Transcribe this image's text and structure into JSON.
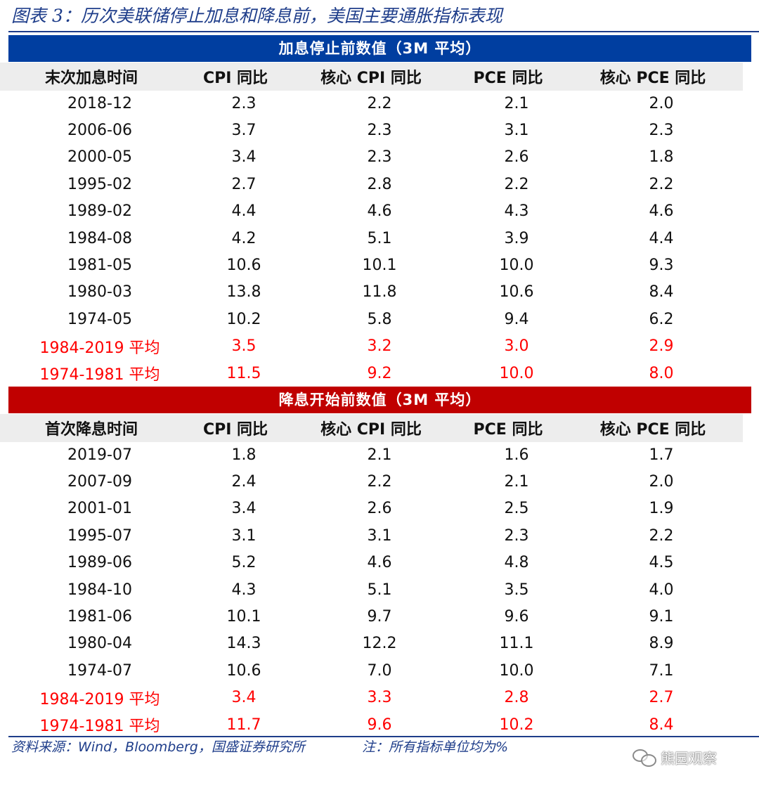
{
  "title": "图表 3：历次美联储停止加息和降息前，美国主要通胀指标表现",
  "section1": {
    "band": "加息停止前数值（3M 平均）",
    "headers": [
      "末次加息时间",
      "CPI 同比",
      "核心 CPI 同比",
      "PCE 同比",
      "核心 PCE 同比"
    ],
    "rows": [
      [
        "2018-12",
        "2.3",
        "2.2",
        "2.1",
        "2.0"
      ],
      [
        "2006-06",
        "3.7",
        "2.3",
        "3.1",
        "2.3"
      ],
      [
        "2000-05",
        "3.4",
        "2.3",
        "2.6",
        "1.8"
      ],
      [
        "1995-02",
        "2.7",
        "2.8",
        "2.2",
        "2.2"
      ],
      [
        "1989-02",
        "4.4",
        "4.6",
        "4.3",
        "4.6"
      ],
      [
        "1984-08",
        "4.2",
        "5.1",
        "3.9",
        "4.4"
      ],
      [
        "1981-05",
        "10.6",
        "10.1",
        "10.0",
        "9.3"
      ],
      [
        "1980-03",
        "13.8",
        "11.8",
        "10.6",
        "8.4"
      ],
      [
        "1974-05",
        "10.2",
        "5.8",
        "9.4",
        "6.2"
      ]
    ],
    "averages": [
      [
        "1984-2019 平均",
        "3.5",
        "3.2",
        "3.0",
        "2.9"
      ],
      [
        "1974-1981 平均",
        "11.5",
        "9.2",
        "10.0",
        "8.0"
      ]
    ]
  },
  "section2": {
    "band": "降息开始前数值（3M 平均）",
    "headers": [
      "首次降息时间",
      "CPI 同比",
      "核心 CPI 同比",
      "PCE 同比",
      "核心 PCE 同比"
    ],
    "rows": [
      [
        "2019-07",
        "1.8",
        "2.1",
        "1.6",
        "1.7"
      ],
      [
        "2007-09",
        "2.4",
        "2.2",
        "2.1",
        "2.0"
      ],
      [
        "2001-01",
        "3.4",
        "2.6",
        "2.5",
        "1.9"
      ],
      [
        "1995-07",
        "3.1",
        "3.1",
        "2.3",
        "2.2"
      ],
      [
        "1989-06",
        "5.2",
        "4.6",
        "4.8",
        "4.5"
      ],
      [
        "1984-10",
        "4.3",
        "5.1",
        "3.5",
        "4.0"
      ],
      [
        "1981-06",
        "10.1",
        "9.7",
        "9.6",
        "9.1"
      ],
      [
        "1980-04",
        "14.3",
        "12.2",
        "11.1",
        "8.9"
      ],
      [
        "1974-07",
        "10.6",
        "7.0",
        "10.0",
        "7.1"
      ]
    ],
    "averages": [
      [
        "1984-2019 平均",
        "3.4",
        "3.3",
        "2.8",
        "2.7"
      ],
      [
        "1974-1981 平均",
        "11.7",
        "9.6",
        "10.2",
        "8.4"
      ]
    ]
  },
  "footer": {
    "source": "资料来源：Wind，Bloomberg，国盛证券研究所",
    "note": "注：所有指标单位均为%"
  },
  "watermark": {
    "icon": "wechat-icon",
    "text": "熊园观察"
  },
  "colors": {
    "title_blue": "#1e3d8a",
    "band_blue": "#003ea0",
    "band_red": "#c00000",
    "header_gray": "#ededed",
    "average_red": "#ff0000"
  }
}
